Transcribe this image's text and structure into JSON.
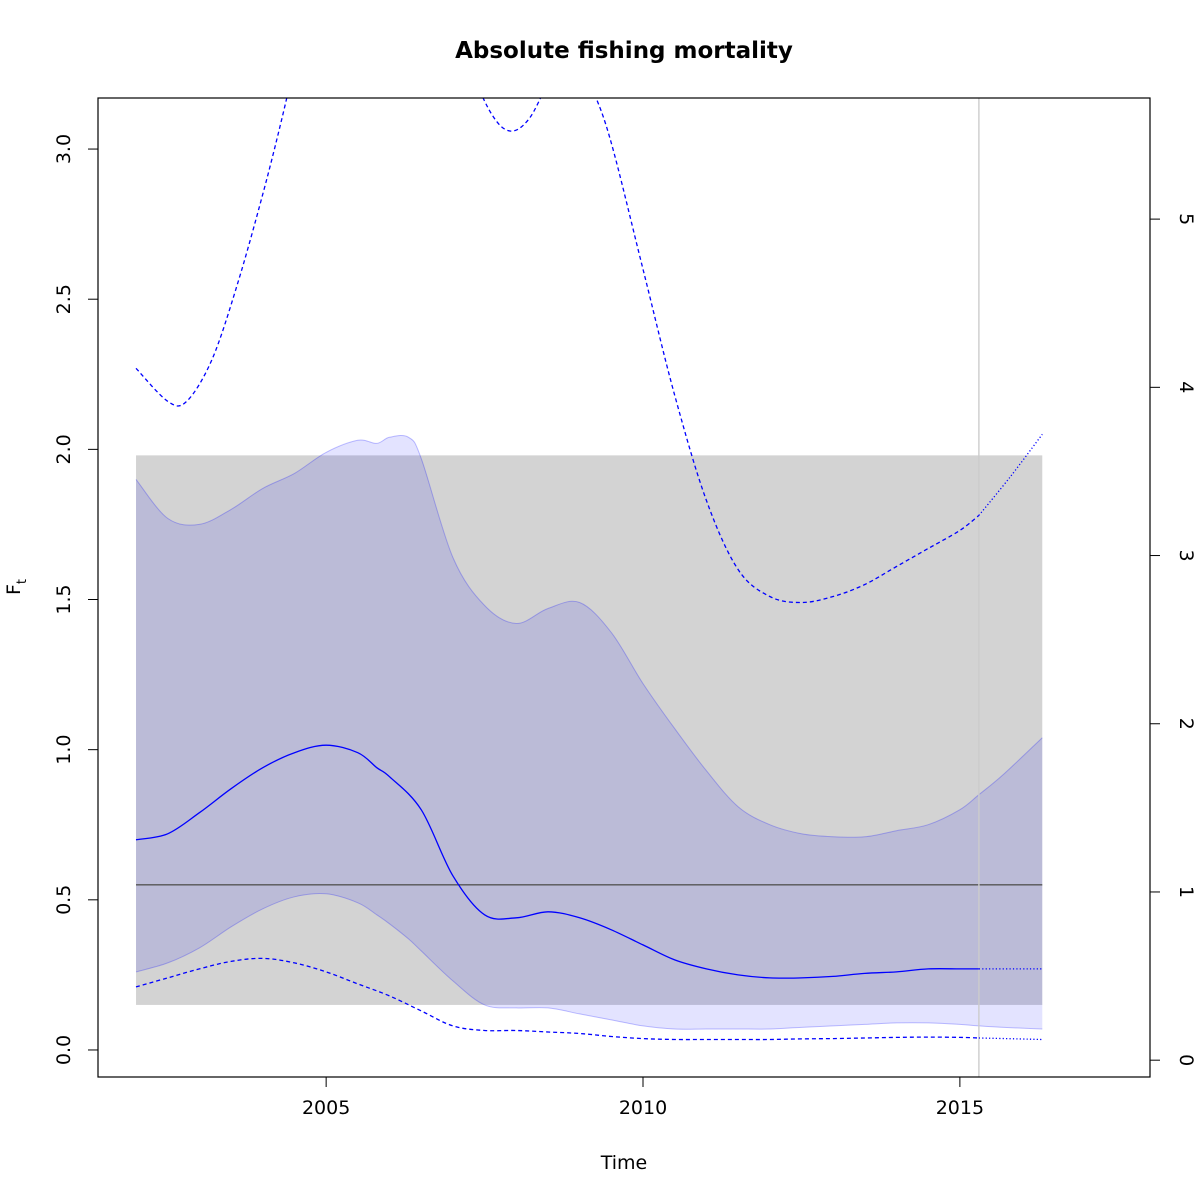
{
  "chart_data": {
    "type": "line",
    "title": "Absolute fishing mortality",
    "xlabel": "Time",
    "ylabel_main": "F",
    "ylabel_sub": "t",
    "xlim": [
      2001.4,
      2018.0
    ],
    "ylim": [
      -0.09,
      3.17
    ],
    "ylim_right": [
      -0.1,
      5.72
    ],
    "x_ticks": [
      2005,
      2010,
      2015
    ],
    "x_tick_labels": [
      "2005",
      "2010",
      "2015"
    ],
    "y_ticks": [
      0.0,
      0.5,
      1.0,
      1.5,
      2.0,
      2.5,
      3.0
    ],
    "y_tick_labels": [
      "0.0",
      "0.5",
      "1.0",
      "1.5",
      "2.0",
      "2.5",
      "3.0"
    ],
    "y2_ticks": [
      0,
      1,
      2,
      3,
      4,
      5
    ],
    "y2_tick_labels": [
      "0",
      "1",
      "2",
      "3",
      "4",
      "5"
    ],
    "grid": false,
    "gray_band": {
      "x": [
        2002.0,
        2016.3
      ],
      "y": [
        0.15,
        1.98
      ],
      "color": "#d3d3d3"
    },
    "reference_line": {
      "y": 0.55,
      "x": [
        2002.0,
        2016.3
      ],
      "color": "#555555"
    },
    "vertical_line": {
      "x": 2015.3,
      "color": "#cccccc"
    },
    "ci_band": {
      "color": "#0000ff",
      "x": [
        2002.0,
        2002.5,
        2003.0,
        2003.5,
        2004.0,
        2004.5,
        2005.0,
        2005.5,
        2005.8,
        2006.0,
        2006.3,
        2006.5,
        2007.0,
        2007.5,
        2008.0,
        2008.5,
        2009.0,
        2009.5,
        2010.0,
        2010.5,
        2011.0,
        2011.5,
        2012.0,
        2012.5,
        2013.0,
        2013.5,
        2014.0,
        2014.5,
        2015.0,
        2015.3,
        2015.7,
        2016.3
      ],
      "upper": [
        1.9,
        1.77,
        1.75,
        1.8,
        1.87,
        1.92,
        1.99,
        2.03,
        2.02,
        2.04,
        2.04,
        1.97,
        1.64,
        1.48,
        1.42,
        1.47,
        1.49,
        1.39,
        1.22,
        1.07,
        0.93,
        0.81,
        0.75,
        0.72,
        0.71,
        0.71,
        0.73,
        0.75,
        0.8,
        0.85,
        0.92,
        1.04
      ],
      "lower": [
        0.26,
        0.29,
        0.34,
        0.41,
        0.47,
        0.51,
        0.52,
        0.49,
        0.45,
        0.42,
        0.37,
        0.33,
        0.23,
        0.15,
        0.14,
        0.14,
        0.12,
        0.1,
        0.08,
        0.07,
        0.07,
        0.07,
        0.07,
        0.075,
        0.08,
        0.085,
        0.09,
        0.09,
        0.085,
        0.08,
        0.075,
        0.07
      ]
    },
    "series": [
      {
        "color": "#0000ff",
        "style": "solid",
        "x": [
          2002.0,
          2002.5,
          2003.0,
          2003.5,
          2004.0,
          2004.5,
          2005.0,
          2005.5,
          2005.8,
          2006.0,
          2006.5,
          2007.0,
          2007.5,
          2008.0,
          2008.5,
          2009.0,
          2009.5,
          2010.0,
          2010.5,
          2011.0,
          2011.5,
          2012.0,
          2012.5,
          2013.0,
          2013.5,
          2014.0,
          2014.5,
          2015.0,
          2015.3
        ],
        "y": [
          0.7,
          0.72,
          0.79,
          0.87,
          0.94,
          0.99,
          1.015,
          0.99,
          0.94,
          0.91,
          0.8,
          0.58,
          0.45,
          0.44,
          0.46,
          0.44,
          0.4,
          0.35,
          0.3,
          0.27,
          0.25,
          0.24,
          0.24,
          0.245,
          0.255,
          0.26,
          0.27,
          0.27,
          0.27
        ]
      },
      {
        "color": "#0000ff",
        "style": "dotted",
        "x": [
          2015.3,
          2016.3
        ],
        "y": [
          0.27,
          0.27
        ]
      },
      {
        "color": "#0000ff",
        "style": "dashed",
        "x": [
          2002.0,
          2002.5,
          2003.0,
          2003.5,
          2004.0,
          2004.5,
          2005.0,
          2005.5,
          2006.0,
          2006.5,
          2007.0,
          2007.5,
          2008.0,
          2008.5,
          2009.0,
          2009.5,
          2010.0,
          2010.5,
          2011.0,
          2011.5,
          2012.0,
          2012.5,
          2013.0,
          2013.5,
          2014.0,
          2014.5,
          2015.0,
          2015.3
        ],
        "y": [
          0.21,
          0.24,
          0.27,
          0.295,
          0.305,
          0.29,
          0.26,
          0.22,
          0.18,
          0.13,
          0.08,
          0.065,
          0.065,
          0.06,
          0.055,
          0.045,
          0.038,
          0.035,
          0.035,
          0.035,
          0.035,
          0.037,
          0.038,
          0.04,
          0.042,
          0.043,
          0.042,
          0.04
        ]
      },
      {
        "color": "#0000ff",
        "style": "dotted",
        "x": [
          2015.3,
          2016.3
        ],
        "y": [
          0.04,
          0.035
        ]
      },
      {
        "color": "#0000ff",
        "style": "dashed",
        "x": [
          2002.0,
          2002.5,
          2002.8,
          2003.2,
          2003.6,
          2004.0,
          2004.3,
          2004.55
        ],
        "y": [
          2.27,
          2.16,
          2.16,
          2.3,
          2.55,
          2.85,
          3.1,
          3.33
        ]
      },
      {
        "color": "#0000ff",
        "style": "dashed",
        "x": [
          2007.2,
          2007.6,
          2007.9,
          2008.2,
          2008.5,
          2008.8
        ],
        "y": [
          3.3,
          3.12,
          3.06,
          3.1,
          3.22,
          3.33
        ]
      },
      {
        "color": "#0000ff",
        "style": "dashed",
        "x": [
          2008.9,
          2009.2,
          2009.5,
          2010.0,
          2010.5,
          2011.0,
          2011.5,
          2012.0,
          2012.5,
          2013.0,
          2013.5,
          2014.0,
          2014.5,
          2015.0,
          2015.3
        ],
        "y": [
          3.33,
          3.2,
          3.02,
          2.6,
          2.18,
          1.83,
          1.6,
          1.51,
          1.49,
          1.51,
          1.55,
          1.61,
          1.67,
          1.73,
          1.78
        ]
      },
      {
        "color": "#0000ff",
        "style": "dotted",
        "x": [
          2015.3,
          2015.8,
          2016.3
        ],
        "y": [
          1.78,
          1.91,
          2.05
        ]
      }
    ]
  }
}
